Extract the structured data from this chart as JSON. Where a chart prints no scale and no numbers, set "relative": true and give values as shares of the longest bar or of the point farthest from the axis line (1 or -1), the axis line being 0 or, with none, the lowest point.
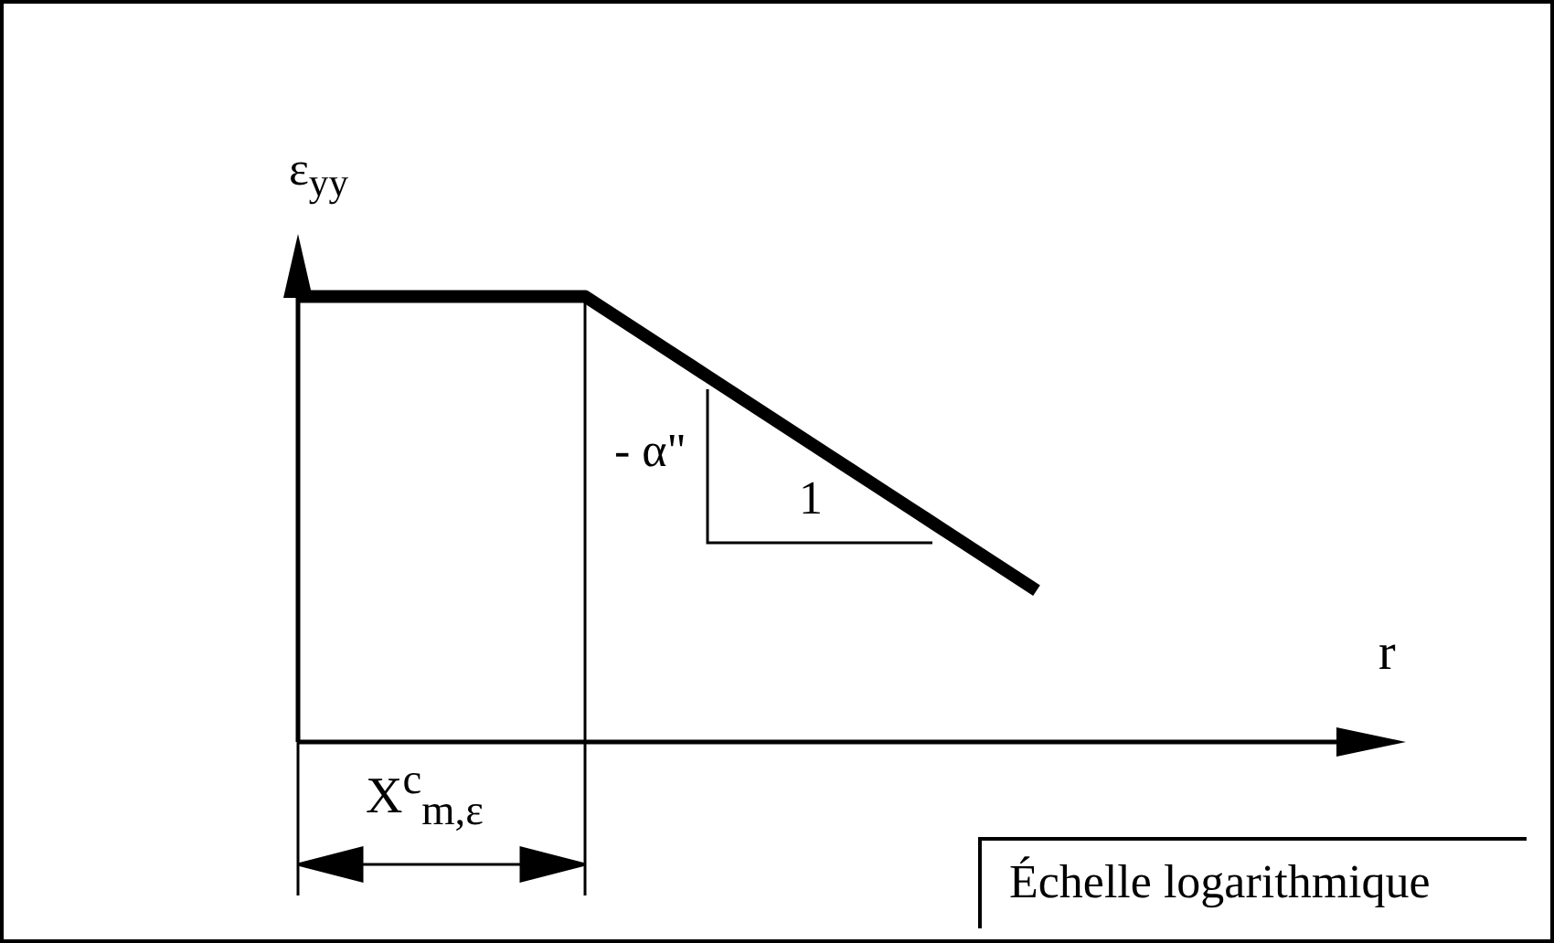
{
  "chart_data": {
    "type": "line",
    "relative": true,
    "xlabel": "r",
    "ylabel": "ε$_{yy}$",
    "categories": [
      null,
      null,
      null,
      null,
      null,
      null,
      null,
      null,
      null,
      null,
      null,
      null,
      null,
      null,
      null,
      null,
      null,
      null,
      null,
      null,
      null,
      null,
      null,
      null,
      null,
      null,
      null,
      null
    ],
    "series": [
      {
        "color": "#000000",
        "values": [
          1,
          1,
          1,
          1,
          1,
          1,
          1,
          1,
          0.94,
          0.88,
          0.82,
          0.76,
          0.7,
          0.64,
          0.58,
          0.52,
          0.46,
          0.4,
          0.34,
          null,
          null,
          null,
          null,
          null,
          null,
          null,
          null,
          null
        ]
      }
    ],
    "legend": false,
    "marker": "none",
    "line_style": "solid",
    "annotations": [
      "- α\"",
      "1",
      "X$^{c}$$_{m,ε}$",
      "Échelle logarithmique"
    ]
  }
}
